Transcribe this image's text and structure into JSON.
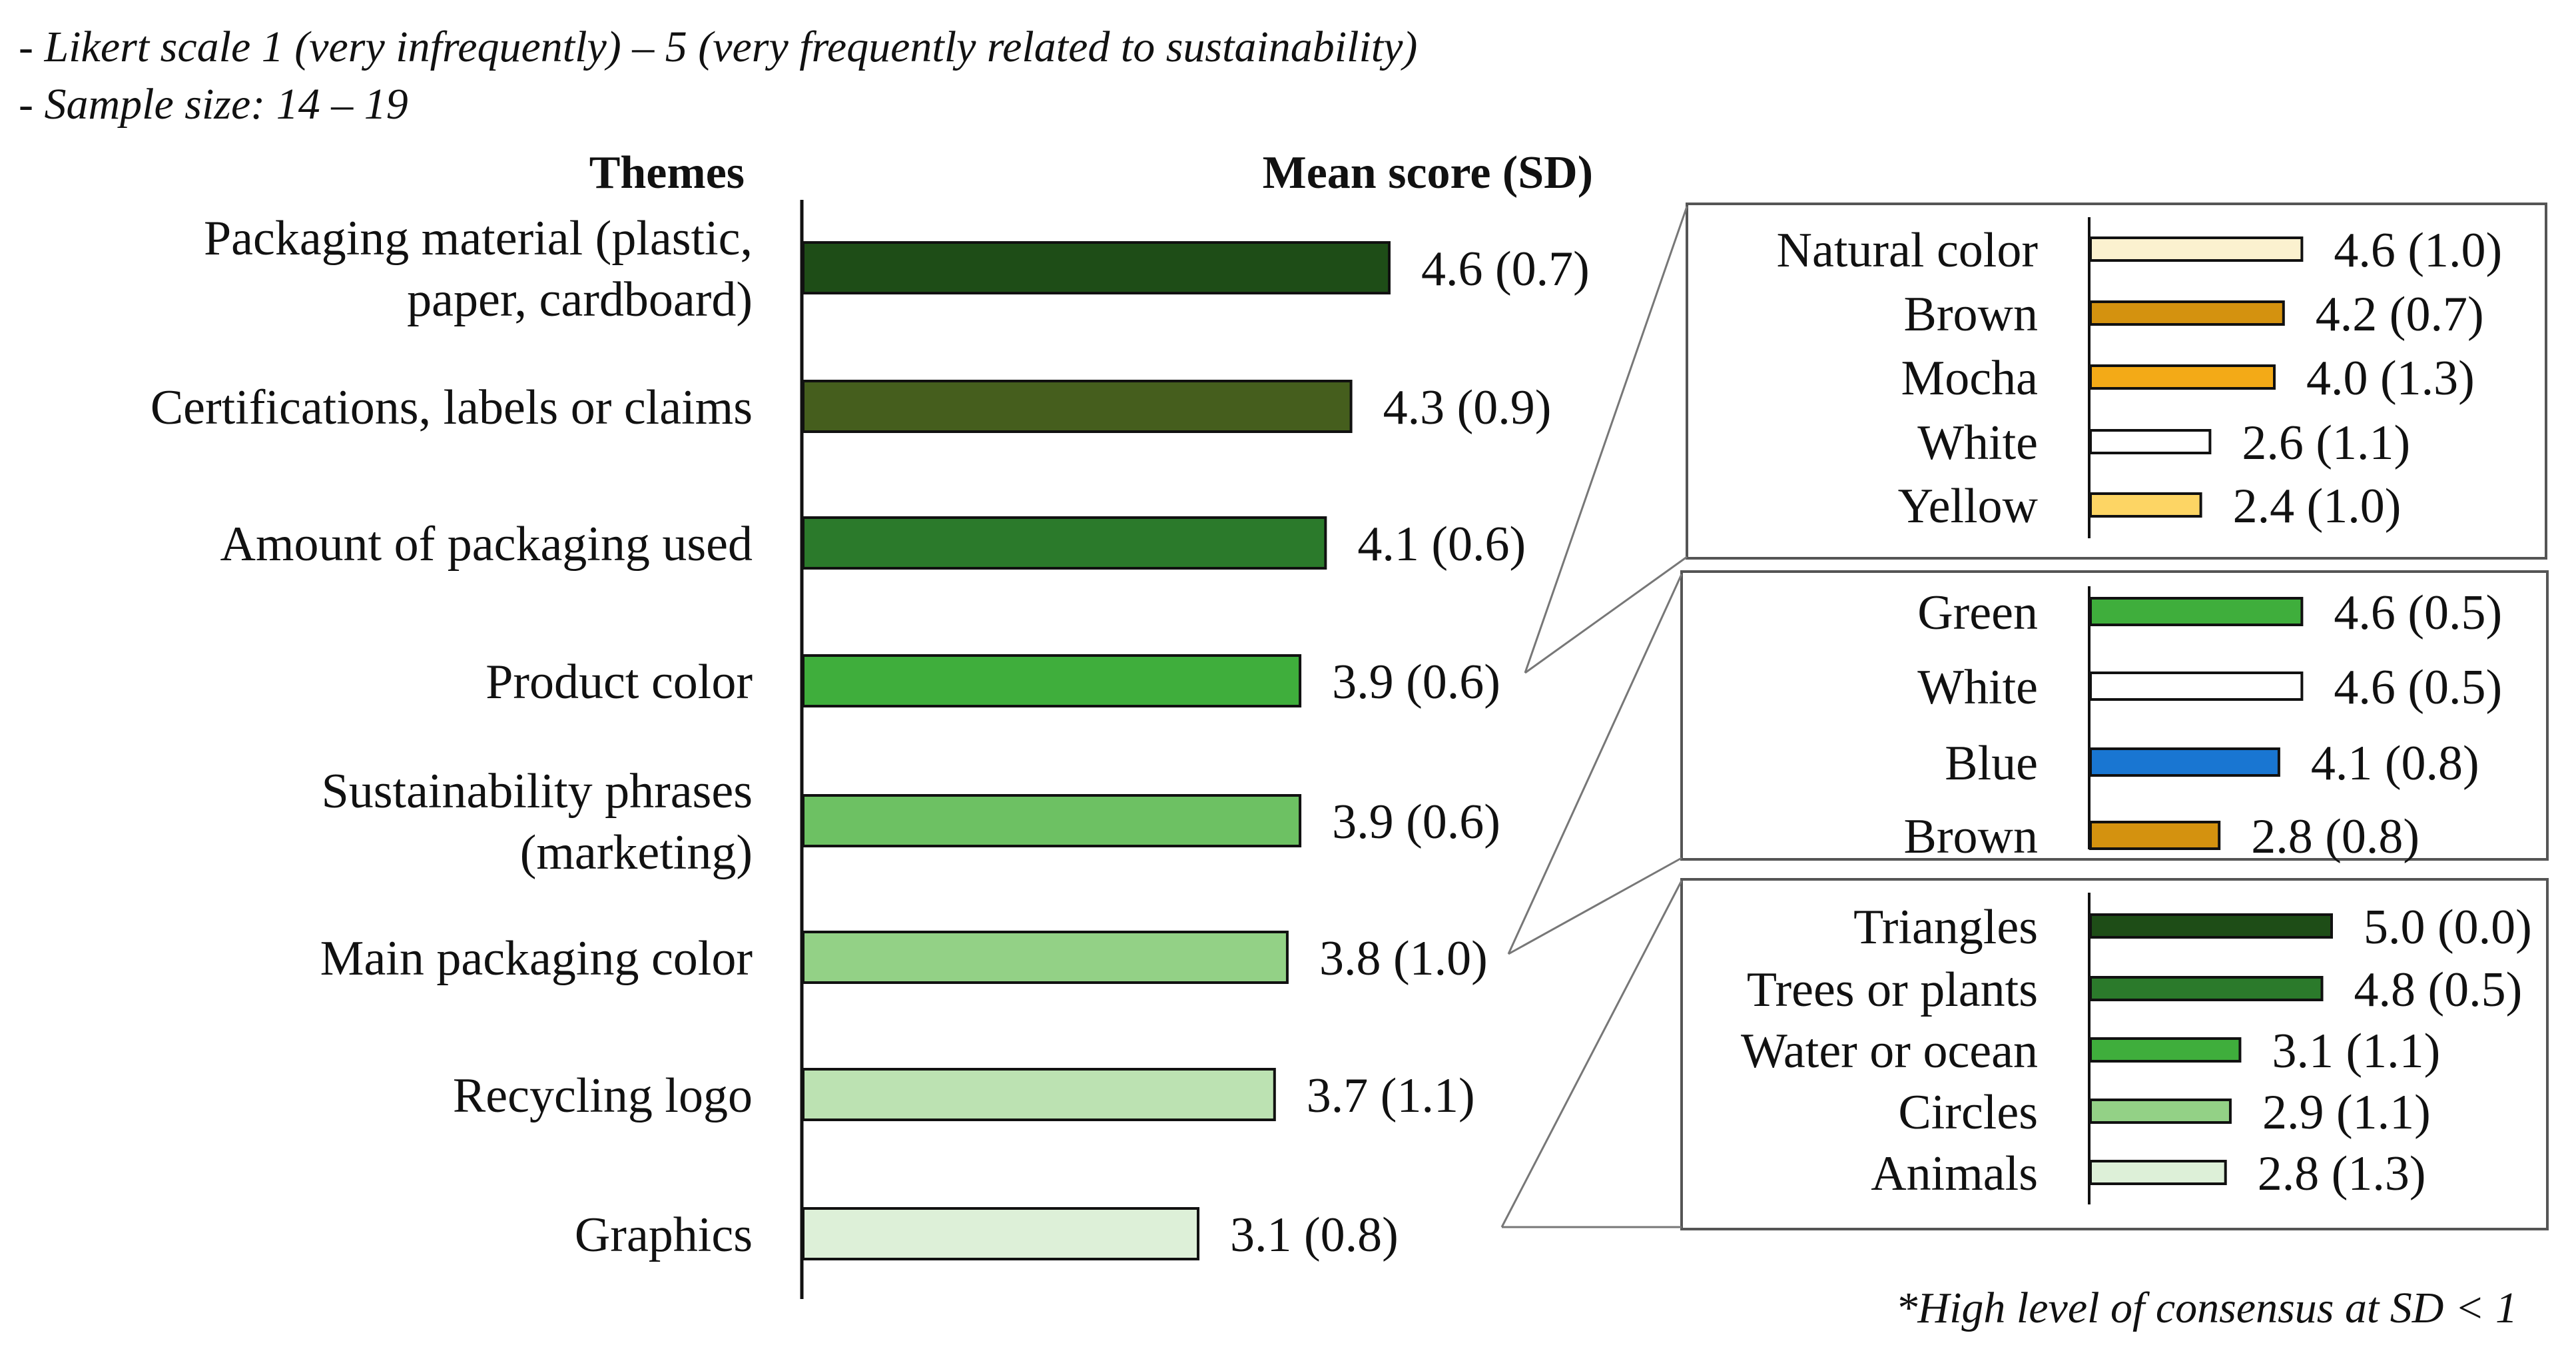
{
  "notes": {
    "likert": "- Likert scale 1 (very infrequently)   – 5 (very frequently related to sustainability)",
    "sample": "- Sample size: 14 – 19",
    "footnote": "*High level of consensus at SD < 1"
  },
  "headers": {
    "themes": "Themes",
    "mean": "Mean score (SD)"
  },
  "chart_data": [
    {
      "type": "bar",
      "orientation": "horizontal",
      "grid": false,
      "categories": [
        [
          "Packaging material (plastic,",
          "paper, cardboard)"
        ],
        [
          "Certifications, labels or claims"
        ],
        [
          "Amount of packaging used"
        ],
        [
          "Product color"
        ],
        [
          "Sustainability phrases",
          "(marketing)"
        ],
        [
          "Main packaging color"
        ],
        [
          "Recycling logo"
        ],
        [
          "Graphics"
        ]
      ],
      "values": [
        4.6,
        4.3,
        4.1,
        3.9,
        3.9,
        3.8,
        3.7,
        3.1
      ],
      "sd": [
        0.7,
        0.9,
        0.6,
        0.6,
        0.6,
        1.0,
        1.1,
        0.8
      ],
      "labels": [
        "4.6 (0.7)",
        "4.3 (0.9)",
        "4.1 (0.6)",
        "3.9 (0.6)",
        "3.9 (0.6)",
        "3.8 (1.0)",
        "3.7 (1.1)",
        "3.1 (0.8)"
      ],
      "colors": [
        "#1e4d17",
        "#455e1d",
        "#2b7a2b",
        "#3fae3c",
        "#6dc163",
        "#93d186",
        "#bce2b2",
        "#ddf0d8"
      ],
      "xlim": [
        0,
        5
      ]
    },
    {
      "type": "bar",
      "orientation": "horizontal",
      "grid": false,
      "categories": [
        "Natural color",
        "Brown",
        "Mocha",
        "White",
        "Yellow"
      ],
      "values": [
        4.6,
        4.2,
        4.0,
        2.6,
        2.4
      ],
      "sd": [
        1.0,
        0.7,
        1.3,
        1.1,
        1.0
      ],
      "labels": [
        "4.6 (1.0)",
        "4.2 (0.7)",
        "4.0 (1.3)",
        "2.6 (1.1)",
        "2.4 (1.0)"
      ],
      "colors": [
        "#fbf1cf",
        "#d4920f",
        "#f3aa17",
        "#ffffff",
        "#fdd564"
      ],
      "xlim": [
        0,
        5
      ]
    },
    {
      "type": "bar",
      "orientation": "horizontal",
      "grid": false,
      "categories": [
        "Green",
        "White",
        "Blue",
        "Brown"
      ],
      "values": [
        4.6,
        4.6,
        4.1,
        2.8
      ],
      "sd": [
        0.5,
        0.5,
        0.8,
        0.8
      ],
      "labels": [
        "4.6 (0.5)",
        "4.6 (0.5)",
        "4.1 (0.8)",
        "2.8 (0.8)"
      ],
      "colors": [
        "#3fae3c",
        "#ffffff",
        "#1976d2",
        "#d4920f"
      ],
      "xlim": [
        0,
        5
      ]
    },
    {
      "type": "bar",
      "orientation": "horizontal",
      "grid": false,
      "categories": [
        "Triangles",
        "Trees or plants",
        "Water or ocean",
        "Circles",
        "Animals"
      ],
      "values": [
        5.0,
        4.8,
        3.1,
        2.9,
        2.8
      ],
      "sd": [
        0.0,
        0.5,
        1.1,
        1.1,
        1.3
      ],
      "labels": [
        "5.0 (0.0)",
        "4.8 (0.5)",
        "3.1 (1.1)",
        "2.9 (1.1)",
        "2.8 (1.3)"
      ],
      "colors": [
        "#1e4d17",
        "#2b7a2b",
        "#3fae3c",
        "#93d186",
        "#ddf0d8"
      ],
      "xlim": [
        0,
        5
      ]
    }
  ]
}
